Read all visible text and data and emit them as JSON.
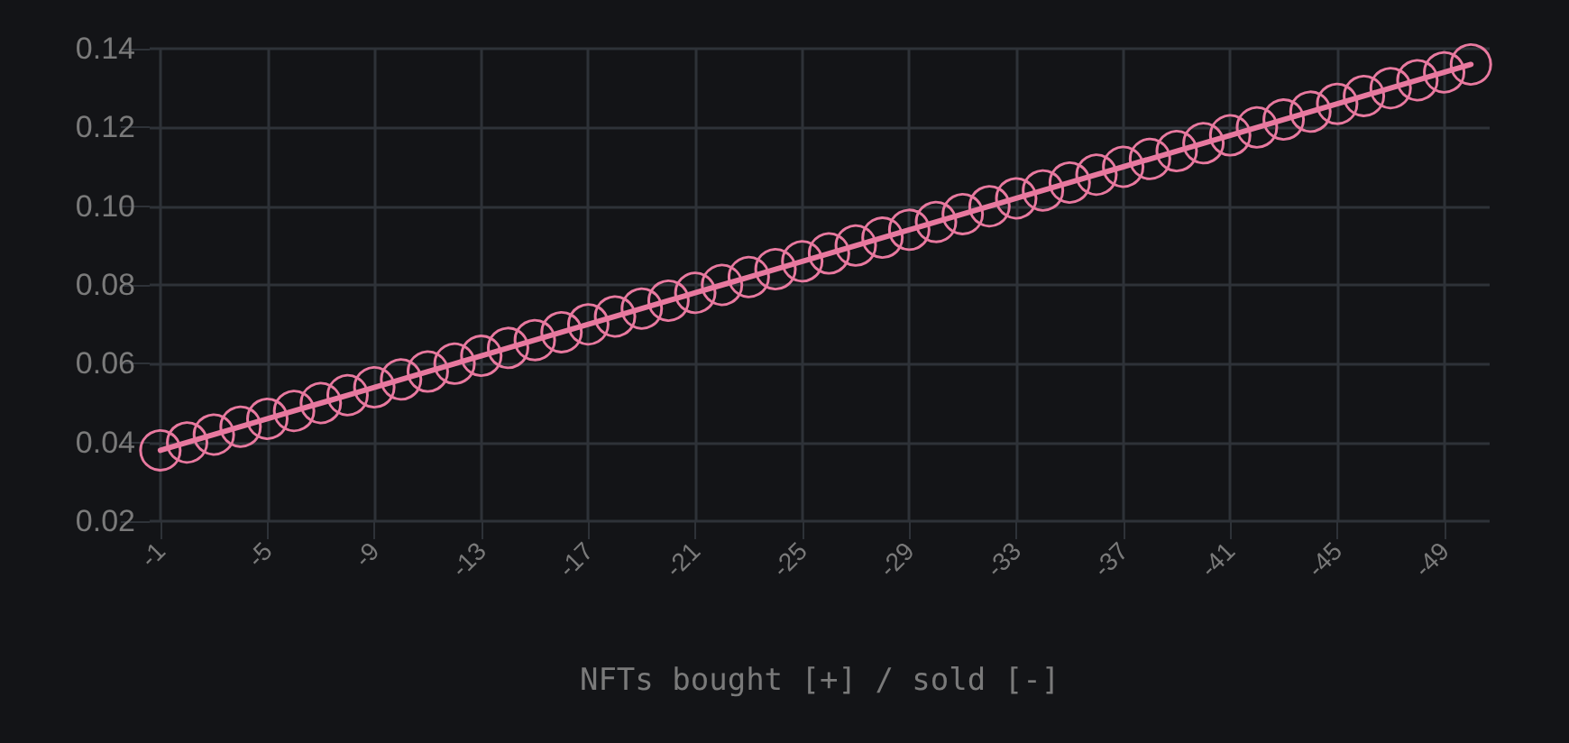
{
  "chart_data": {
    "type": "line",
    "xlabel": "NFTs bought [+] / sold [-]",
    "x": [
      -1,
      -2,
      -3,
      -4,
      -5,
      -6,
      -7,
      -8,
      -9,
      -10,
      -11,
      -12,
      -13,
      -14,
      -15,
      -16,
      -17,
      -18,
      -19,
      -20,
      -21,
      -22,
      -23,
      -24,
      -25,
      -26,
      -27,
      -28,
      -29,
      -30,
      -31,
      -32,
      -33,
      -34,
      -35,
      -36,
      -37,
      -38,
      -39,
      -40,
      -41,
      -42,
      -43,
      -44,
      -45,
      -46,
      -47,
      -48,
      -49,
      -50
    ],
    "series": [
      {
        "color": "#e8799f",
        "values": [
          0.038,
          0.04,
          0.042,
          0.044,
          0.046,
          0.048,
          0.05,
          0.052,
          0.054,
          0.056,
          0.058,
          0.06,
          0.062,
          0.064,
          0.066,
          0.068,
          0.07,
          0.072,
          0.074,
          0.076,
          0.078,
          0.08,
          0.082,
          0.084,
          0.086,
          0.088,
          0.09,
          0.092,
          0.094,
          0.096,
          0.098,
          0.1,
          0.102,
          0.104,
          0.106,
          0.108,
          0.11,
          0.112,
          0.114,
          0.116,
          0.118,
          0.12,
          0.122,
          0.124,
          0.126,
          0.128,
          0.13,
          0.132,
          0.134,
          0.136
        ]
      }
    ],
    "xlim": [
      -0.6,
      -50.7
    ],
    "xticks": [
      -1,
      -5,
      -9,
      -13,
      -17,
      -21,
      -25,
      -29,
      -33,
      -37,
      -41,
      -45,
      -49
    ],
    "ylim": [
      0.02,
      0.14
    ],
    "yticks": [
      0.02,
      0.04,
      0.06,
      0.08,
      {
        "value": 0.1,
        "label": "0.10"
      },
      0.12,
      0.14
    ],
    "grid": true,
    "marker": "circle",
    "line_style": "solid"
  }
}
